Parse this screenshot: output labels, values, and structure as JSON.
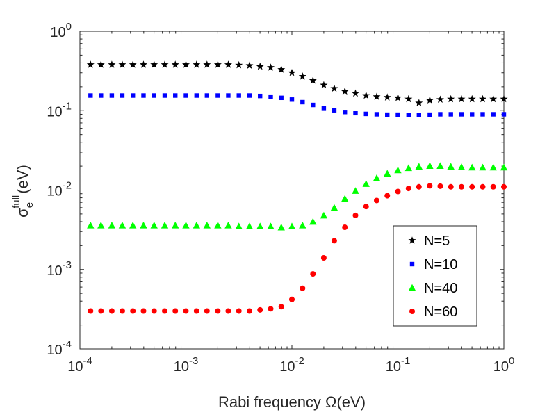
{
  "chart_data": {
    "type": "scatter",
    "title": "",
    "xlabel": "Rabi frequency Ω(eV)",
    "ylabel": {
      "symbol": "σ",
      "subscript": "e",
      "superscript": "full",
      "unit": "(eV)"
    },
    "xscale": "log",
    "yscale": "log",
    "xlim": [
      0.0001,
      1
    ],
    "ylim": [
      0.0001,
      1
    ],
    "xticks": [
      {
        "value": 0.0001,
        "base": "10",
        "exp": "-4"
      },
      {
        "value": 0.001,
        "base": "10",
        "exp": "-3"
      },
      {
        "value": 0.01,
        "base": "10",
        "exp": "-2"
      },
      {
        "value": 0.1,
        "base": "10",
        "exp": "-1"
      },
      {
        "value": 1,
        "base": "10",
        "exp": "0"
      }
    ],
    "yticks": [
      {
        "value": 0.0001,
        "base": "10",
        "exp": "-4"
      },
      {
        "value": 0.001,
        "base": "10",
        "exp": "-3"
      },
      {
        "value": 0.01,
        "base": "10",
        "exp": "-2"
      },
      {
        "value": 0.1,
        "base": "10",
        "exp": "-1"
      },
      {
        "value": 1,
        "base": "10",
        "exp": "0"
      }
    ],
    "x": [
      0.000126,
      0.000158,
      0.0002,
      0.000251,
      0.000316,
      0.000398,
      0.000501,
      0.000631,
      0.000794,
      0.001,
      0.00126,
      0.00158,
      0.002,
      0.00251,
      0.00316,
      0.00398,
      0.00501,
      0.00631,
      0.00794,
      0.01,
      0.0126,
      0.0158,
      0.02,
      0.0251,
      0.0316,
      0.0398,
      0.0501,
      0.0631,
      0.0794,
      0.1,
      0.126,
      0.158,
      0.2,
      0.251,
      0.316,
      0.398,
      0.501,
      0.631,
      0.794,
      1.0
    ],
    "legend_position": "lower-right",
    "grid": false,
    "series": [
      {
        "name": "N=5",
        "color": "#000000",
        "marker": "star",
        "values": [
          0.38,
          0.38,
          0.38,
          0.38,
          0.38,
          0.38,
          0.38,
          0.38,
          0.38,
          0.38,
          0.38,
          0.38,
          0.38,
          0.38,
          0.375,
          0.37,
          0.36,
          0.35,
          0.33,
          0.3,
          0.27,
          0.24,
          0.21,
          0.19,
          0.175,
          0.165,
          0.155,
          0.15,
          0.147,
          0.145,
          0.14,
          0.125,
          0.135,
          0.138,
          0.14,
          0.14,
          0.14,
          0.14,
          0.14,
          0.14
        ]
      },
      {
        "name": "N=10",
        "color": "#0000ff",
        "marker": "square",
        "values": [
          0.155,
          0.155,
          0.155,
          0.155,
          0.155,
          0.155,
          0.155,
          0.155,
          0.155,
          0.155,
          0.155,
          0.155,
          0.155,
          0.155,
          0.155,
          0.155,
          0.153,
          0.15,
          0.145,
          0.138,
          0.128,
          0.118,
          0.108,
          0.101,
          0.096,
          0.093,
          0.091,
          0.09,
          0.089,
          0.089,
          0.088,
          0.088,
          0.089,
          0.09,
          0.09,
          0.09,
          0.09,
          0.09,
          0.09,
          0.09
        ]
      },
      {
        "name": "N=40",
        "color": "#00ff00",
        "marker": "triangle",
        "values": [
          0.0036,
          0.0036,
          0.0036,
          0.0036,
          0.0036,
          0.0036,
          0.0036,
          0.0036,
          0.0036,
          0.0036,
          0.0036,
          0.0036,
          0.0036,
          0.0036,
          0.0035,
          0.0035,
          0.0035,
          0.0035,
          0.0034,
          0.0035,
          0.0036,
          0.004,
          0.0048,
          0.006,
          0.0078,
          0.0098,
          0.012,
          0.0142,
          0.0162,
          0.0178,
          0.019,
          0.0198,
          0.0202,
          0.0202,
          0.0198,
          0.0195,
          0.0193,
          0.0193,
          0.0193,
          0.0193
        ]
      },
      {
        "name": "N=60",
        "color": "#ff0000",
        "marker": "circle",
        "values": [
          0.0003,
          0.0003,
          0.0003,
          0.0003,
          0.0003,
          0.0003,
          0.0003,
          0.0003,
          0.0003,
          0.0003,
          0.0003,
          0.0003,
          0.0003,
          0.0003,
          0.0003,
          0.0003,
          0.00031,
          0.00032,
          0.00034,
          0.00042,
          0.00058,
          0.00088,
          0.0014,
          0.0023,
          0.0034,
          0.0048,
          0.0062,
          0.0074,
          0.0085,
          0.0096,
          0.0105,
          0.011,
          0.0113,
          0.0112,
          0.011,
          0.011,
          0.011,
          0.011,
          0.011,
          0.011
        ]
      }
    ]
  }
}
